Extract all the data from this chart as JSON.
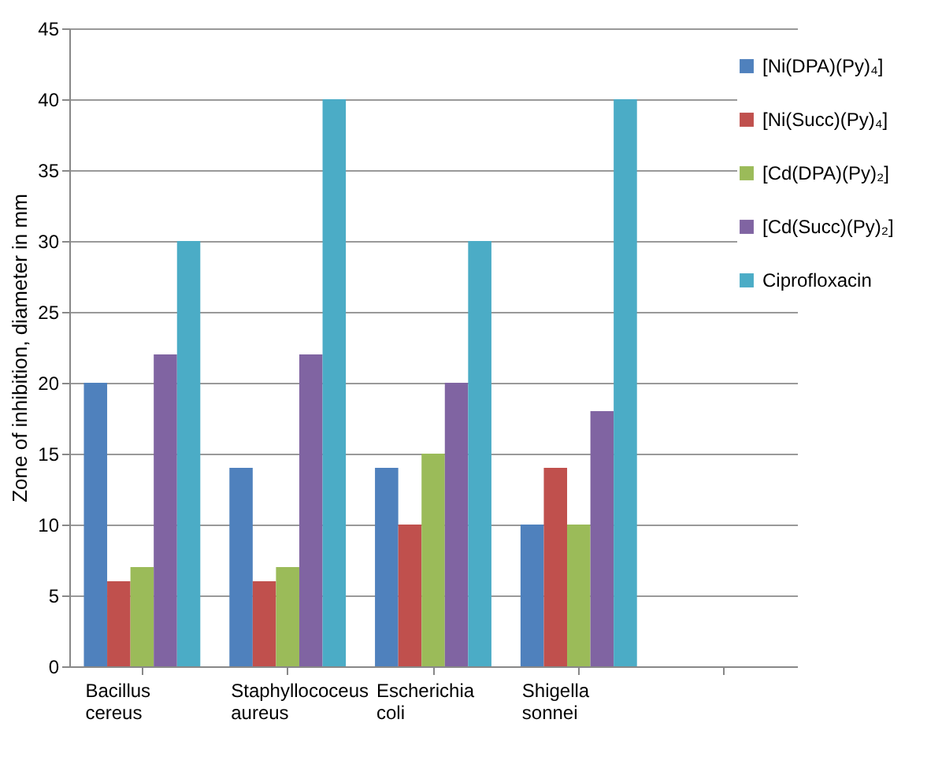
{
  "chart_data": {
    "type": "bar",
    "ylabel": "Zone of inhibition, diameter in mm",
    "categories": [
      "Bacillus cereus",
      "Staphyllococeus aureus",
      "Escherichia coli",
      "Shigella sonnei",
      null
    ],
    "series": [
      {
        "name": "[Ni(DPA)(Py)₄]",
        "color": "#4f81bd",
        "values": [
          20,
          14,
          14,
          10,
          null
        ]
      },
      {
        "name": "[Ni(Succ)(Py)₄]",
        "color": "#c0504d",
        "values": [
          6,
          6,
          10,
          14,
          null
        ]
      },
      {
        "name": "[Cd(DPA)(Py)₂]",
        "color": "#9bbb59",
        "values": [
          7,
          7,
          15,
          10,
          null
        ]
      },
      {
        "name": "[Cd(Succ)(Py)₂]",
        "color": "#8064a2",
        "values": [
          22,
          22,
          20,
          18,
          null
        ]
      },
      {
        "name": "Ciprofloxacin",
        "color": "#4bacc6",
        "values": [
          30,
          40,
          30,
          40,
          null
        ]
      }
    ],
    "ylim": [
      0,
      45
    ],
    "yticks": [
      0,
      5,
      10,
      15,
      20,
      25,
      30,
      35,
      40,
      45
    ],
    "grid": "y",
    "legend": "right"
  }
}
